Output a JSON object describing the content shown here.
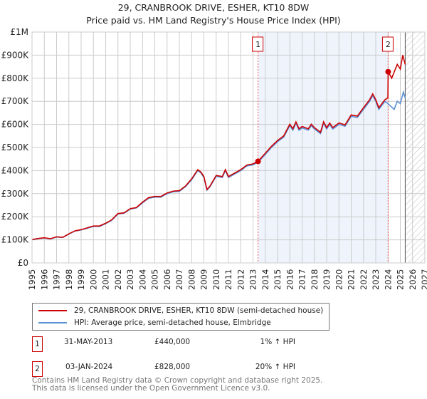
{
  "chart_data": {
    "type": "line",
    "title": "29, CRANBROOK DRIVE, ESHER, KT10 8DW",
    "subtitle": "Price paid vs. HM Land Registry's House Price Index (HPI)",
    "xlim": [
      1995,
      2027
    ],
    "ylim": [
      0,
      1000000
    ],
    "y_ticks": [
      {
        "v": 0,
        "label": "£0"
      },
      {
        "v": 100000,
        "label": "£100K"
      },
      {
        "v": 200000,
        "label": "£200K"
      },
      {
        "v": 300000,
        "label": "£300K"
      },
      {
        "v": 400000,
        "label": "£400K"
      },
      {
        "v": 500000,
        "label": "£500K"
      },
      {
        "v": 600000,
        "label": "£600K"
      },
      {
        "v": 700000,
        "label": "£700K"
      },
      {
        "v": 800000,
        "label": "£800K"
      },
      {
        "v": 900000,
        "label": "£900K"
      },
      {
        "v": 1000000,
        "label": "£1M"
      }
    ],
    "x_ticks": [
      "1995",
      "1996",
      "1997",
      "1998",
      "1999",
      "2000",
      "2001",
      "2002",
      "2003",
      "2004",
      "2005",
      "2006",
      "2007",
      "2008",
      "2009",
      "2010",
      "2011",
      "2012",
      "2013",
      "2014",
      "2015",
      "2016",
      "2017",
      "2018",
      "2019",
      "2020",
      "2021",
      "2022",
      "2023",
      "2024",
      "2025",
      "2026",
      "2027"
    ],
    "grid": true,
    "shaded_period": [
      2013.41,
      2024.01
    ],
    "forecast_hatch_start": 2025.4,
    "colors": {
      "price": "#cc0000",
      "hpi": "#5b8fd6",
      "shade": "#eef3fc",
      "marker": "#cc0000"
    },
    "series": [
      {
        "name": "29, CRANBROOK DRIVE, ESHER, KT10 8DW (semi-detached house)",
        "key": "price",
        "x": [
          1995,
          1995.5,
          1996,
          1996.5,
          1997,
          1997.5,
          1998,
          1998.5,
          1999,
          1999.5,
          2000,
          2000.5,
          2001,
          2001.5,
          2002,
          2002.5,
          2003,
          2003.5,
          2004,
          2004.5,
          2005,
          2005.5,
          2006,
          2006.5,
          2007,
          2007.5,
          2008,
          2008.5,
          2008.75,
          2009,
          2009.25,
          2009.5,
          2010,
          2010.5,
          2010.75,
          2011,
          2011.5,
          2012,
          2012.5,
          2013,
          2013.41,
          2014,
          2014.5,
          2015,
          2015.5,
          2016,
          2016.25,
          2016.5,
          2016.75,
          2017,
          2017.5,
          2017.75,
          2018,
          2018.5,
          2018.75,
          2019,
          2019.25,
          2019.5,
          2020,
          2020.5,
          2021,
          2021.5,
          2022,
          2022.5,
          2022.75,
          2023,
          2023.25,
          2023.75,
          2023.99,
          2024.01,
          2024.3,
          2024.75,
          2025,
          2025.2,
          2025.4
        ],
        "y": [
          101,
          106,
          109,
          105,
          113,
          111,
          126,
          139,
          144,
          152,
          160,
          160,
          172,
          187,
          214,
          217,
          235,
          240,
          263,
          283,
          288,
          288,
          303,
          311,
          313,
          333,
          364,
          404,
          394,
          374,
          318,
          333,
          379,
          374,
          404,
          374,
          389,
          404,
          424,
          429,
          440,
          475,
          505,
          530,
          550,
          601,
          581,
          611,
          581,
          591,
          581,
          601,
          586,
          566,
          611,
          586,
          606,
          586,
          606,
          598,
          641,
          636,
          672,
          707,
          732,
          707,
          672,
          707,
          715,
          828,
          800,
          860,
          840,
          900,
          860
        ]
      },
      {
        "name": "HPI: Average price, semi-detached house, Elmbridge",
        "key": "hpi",
        "x": [
          1995,
          1995.5,
          1996,
          1996.5,
          1997,
          1997.5,
          1998,
          1998.5,
          1999,
          1999.5,
          2000,
          2000.5,
          2001,
          2001.5,
          2002,
          2002.5,
          2003,
          2003.5,
          2004,
          2004.5,
          2005,
          2005.5,
          2006,
          2006.5,
          2007,
          2007.5,
          2008,
          2008.5,
          2008.75,
          2009,
          2009.25,
          2009.5,
          2010,
          2010.5,
          2010.75,
          2011,
          2011.5,
          2012,
          2012.5,
          2013,
          2013.41,
          2014,
          2014.5,
          2015,
          2015.5,
          2016,
          2016.25,
          2016.5,
          2016.75,
          2017,
          2017.5,
          2017.75,
          2018,
          2018.5,
          2018.75,
          2019,
          2019.25,
          2019.5,
          2020,
          2020.5,
          2021,
          2021.5,
          2022,
          2022.5,
          2022.75,
          2023,
          2023.25,
          2023.75,
          2024,
          2024.5,
          2024.75,
          2025,
          2025.25,
          2025.4
        ],
        "y": [
          100,
          105,
          108,
          104,
          112,
          110,
          125,
          138,
          143,
          150,
          158,
          158,
          170,
          185,
          212,
          215,
          233,
          238,
          260,
          280,
          285,
          285,
          300,
          308,
          310,
          330,
          360,
          400,
          390,
          370,
          315,
          330,
          375,
          370,
          400,
          370,
          385,
          400,
          420,
          425,
          436,
          470,
          500,
          525,
          545,
          595,
          575,
          605,
          575,
          585,
          575,
          595,
          580,
          560,
          605,
          580,
          600,
          580,
          600,
          592,
          635,
          630,
          665,
          700,
          725,
          700,
          665,
          700,
          690,
          665,
          700,
          690,
          740,
          715
        ]
      }
    ],
    "y_unit_note": "series y values in £ thousands",
    "annotations": [
      {
        "id": "1",
        "x": 2013.41,
        "y": 440
      },
      {
        "id": "2",
        "x": 2024.01,
        "y": 828
      }
    ]
  },
  "legend": {
    "items": [
      "29, CRANBROOK DRIVE, ESHER, KT10 8DW (semi-detached house)",
      "HPI: Average price, semi-detached house, Elmbridge"
    ]
  },
  "sales": [
    {
      "id": "1",
      "date": "31-MAY-2013",
      "price": "£440,000",
      "hpi": "1% ↑ HPI"
    },
    {
      "id": "2",
      "date": "03-JAN-2024",
      "price": "£828,000",
      "hpi": "20% ↑ HPI"
    }
  ],
  "footer": {
    "line1": "Contains HM Land Registry data © Crown copyright and database right 2025.",
    "line2": "This data is licensed under the Open Government Licence v3.0."
  }
}
